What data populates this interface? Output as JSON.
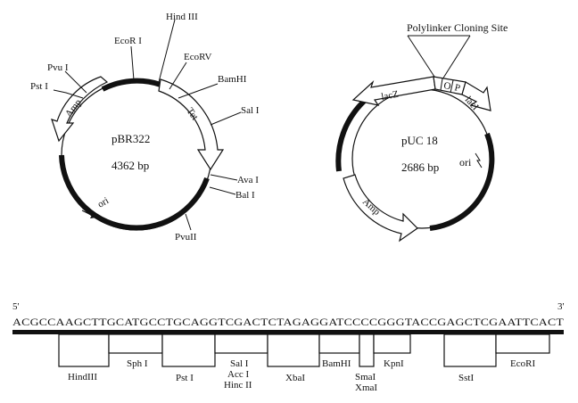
{
  "pbr322": {
    "name": "pBR322",
    "size": "4362 bp",
    "sites": {
      "pst": "Pst I",
      "pvu1": "Pvu I",
      "ecori": "EcoR I",
      "hind3": "Hind III",
      "ecorv": "EcoRV",
      "bamhi": "BamHI",
      "sali": "Sal I",
      "avai": "Ava I",
      "bali": "Bal I",
      "pvu2": "PvuII"
    },
    "genes": {
      "amp": "Amp",
      "tet": "Tet",
      "ori": "ori"
    }
  },
  "puc18": {
    "name": "pUC 18",
    "size": "2686 bp",
    "polylinker": "Polylinker Cloning Site",
    "genes": {
      "lacz": "lacZ",
      "o": "O",
      "p": "P",
      "laci": "lacI",
      "amp": "Amp",
      "ori": "ori"
    }
  },
  "sequence": {
    "five": "5'",
    "three": "3'",
    "text": "ACGCCAAGCTTGCATGCCTGCAGGTCGACTCTAGAGGATCCCCGGGTACCGAGCTCGAATTCACT",
    "sites": {
      "hind3": "HindIII",
      "sph": "Sph I",
      "pst": "Pst I",
      "sal": "Sal I",
      "acc": "Acc I",
      "hinc": "Hinc II",
      "xba": "XbaI",
      "bam": "BamHI",
      "sma": "SmaI",
      "xma": "XmaI",
      "kpn": "KpnI",
      "sst": "SstI",
      "ecor": "EcoRI"
    }
  }
}
